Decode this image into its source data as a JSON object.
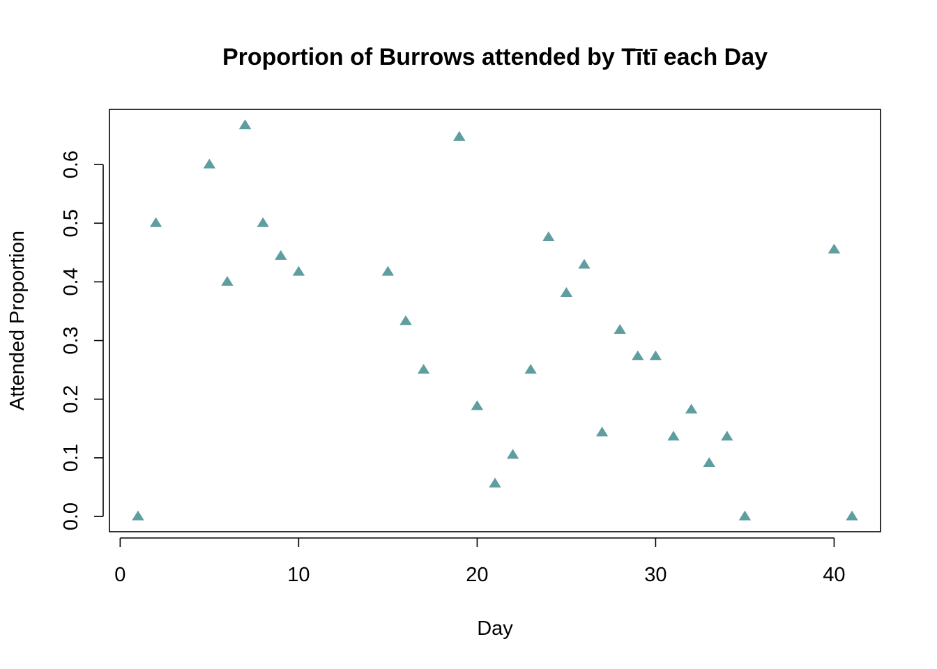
{
  "chart_data": {
    "type": "scatter",
    "title": "Proportion of Burrows attended by Tītī each Day",
    "xlabel": "Day",
    "ylabel": "Attended Proportion",
    "xlim": [
      -0.6,
      42.6
    ],
    "ylim": [
      -0.026,
      0.694
    ],
    "x_ticks": [
      0,
      10,
      20,
      30,
      40
    ],
    "y_ticks": [
      0.0,
      0.1,
      0.2,
      0.3,
      0.4,
      0.5,
      0.6
    ],
    "x_tick_labels": [
      "0",
      "10",
      "20",
      "30",
      "40"
    ],
    "y_tick_labels": [
      "0.0",
      "0.1",
      "0.2",
      "0.3",
      "0.4",
      "0.5",
      "0.6"
    ],
    "marker": "filled-triangle",
    "marker_color": "#5f9ea0",
    "grid": false,
    "points": [
      {
        "x": 1,
        "y": 0.0
      },
      {
        "x": 2,
        "y": 0.5
      },
      {
        "x": 5,
        "y": 0.6
      },
      {
        "x": 6,
        "y": 0.4
      },
      {
        "x": 7,
        "y": 0.667
      },
      {
        "x": 8,
        "y": 0.5
      },
      {
        "x": 9,
        "y": 0.444
      },
      {
        "x": 10,
        "y": 0.417
      },
      {
        "x": 15,
        "y": 0.417
      },
      {
        "x": 16,
        "y": 0.333
      },
      {
        "x": 17,
        "y": 0.25
      },
      {
        "x": 19,
        "y": 0.647
      },
      {
        "x": 20,
        "y": 0.188
      },
      {
        "x": 21,
        "y": 0.056
      },
      {
        "x": 22,
        "y": 0.105
      },
      {
        "x": 23,
        "y": 0.25
      },
      {
        "x": 24,
        "y": 0.476
      },
      {
        "x": 25,
        "y": 0.381
      },
      {
        "x": 26,
        "y": 0.429
      },
      {
        "x": 27,
        "y": 0.143
      },
      {
        "x": 28,
        "y": 0.318
      },
      {
        "x": 29,
        "y": 0.273
      },
      {
        "x": 30,
        "y": 0.273
      },
      {
        "x": 31,
        "y": 0.136
      },
      {
        "x": 32,
        "y": 0.182
      },
      {
        "x": 33,
        "y": 0.091
      },
      {
        "x": 34,
        "y": 0.136
      },
      {
        "x": 35,
        "y": 0.0
      },
      {
        "x": 40,
        "y": 0.455
      },
      {
        "x": 41,
        "y": 0.0
      }
    ]
  }
}
